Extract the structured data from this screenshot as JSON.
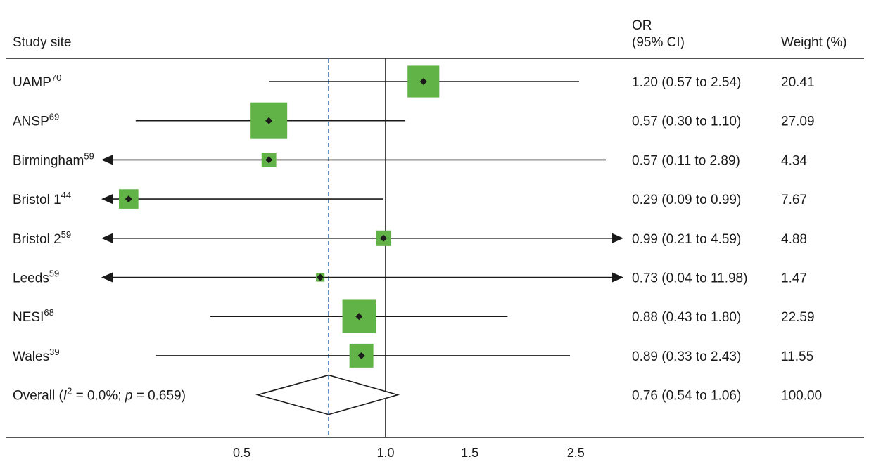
{
  "chart_data": {
    "type": "forest",
    "xscale": "log",
    "xlim": [
      0.15,
      12
    ],
    "xticks": [
      "0.5",
      "1.0",
      "1.5",
      "2.5"
    ],
    "null_line": 1.0,
    "overall_line": 0.76,
    "columns": {
      "study": "Study site",
      "or_line1": "OR",
      "or_line2": "(95% CI)",
      "weight": "Weight (%)"
    },
    "colors": {
      "box": "#62b347",
      "line": "#1a1a1a",
      "dashed": "#2f6db5"
    },
    "studies": [
      {
        "name": "UAMP",
        "sup": "70",
        "or": 1.2,
        "lo": 0.57,
        "hi": 2.54,
        "ci_text": "1.20 (0.57 to 2.54)",
        "weight": 20.41,
        "weight_text": "20.41"
      },
      {
        "name": "ANSP",
        "sup": "69",
        "or": 0.57,
        "lo": 0.3,
        "hi": 1.1,
        "ci_text": "0.57 (0.30 to 1.10)",
        "weight": 27.09,
        "weight_text": "27.09"
      },
      {
        "name": "Birmingham",
        "sup": "59",
        "or": 0.57,
        "lo": 0.11,
        "hi": 2.89,
        "ci_text": "0.57 (0.11 to 2.89)",
        "weight": 4.34,
        "weight_text": "4.34"
      },
      {
        "name": "Bristol 1",
        "sup": "44",
        "or": 0.29,
        "lo": 0.09,
        "hi": 0.99,
        "ci_text": "0.29 (0.09 to 0.99)",
        "weight": 7.67,
        "weight_text": "7.67"
      },
      {
        "name": "Bristol 2",
        "sup": "59",
        "or": 0.99,
        "lo": 0.21,
        "hi": 4.59,
        "ci_text": "0.99 (0.21 to 4.59)",
        "weight": 4.88,
        "weight_text": "4.88"
      },
      {
        "name": "Leeds",
        "sup": "59",
        "or": 0.73,
        "lo": 0.04,
        "hi": 11.98,
        "ci_text": "0.73 (0.04 to 11.98)",
        "weight": 1.47,
        "weight_text": "1.47"
      },
      {
        "name": "NESI",
        "sup": "68",
        "or": 0.88,
        "lo": 0.43,
        "hi": 1.8,
        "ci_text": "0.88 (0.43 to 1.80)",
        "weight": 22.59,
        "weight_text": "22.59"
      },
      {
        "name": "Wales",
        "sup": "39",
        "or": 0.89,
        "lo": 0.33,
        "hi": 2.43,
        "ci_text": "0.89 (0.33 to 2.43)",
        "weight": 11.55,
        "weight_text": "11.55"
      }
    ],
    "overall": {
      "label_pre": "Overall (",
      "label_i": "I",
      "label_sup": "2",
      "label_mid": " = 0.0%; ",
      "label_p": "p",
      "label_post": " = 0.659)",
      "or": 0.76,
      "lo": 0.54,
      "hi": 1.06,
      "ci_text": "0.76 (0.54 to 1.06)",
      "weight_text": "100.00"
    }
  }
}
